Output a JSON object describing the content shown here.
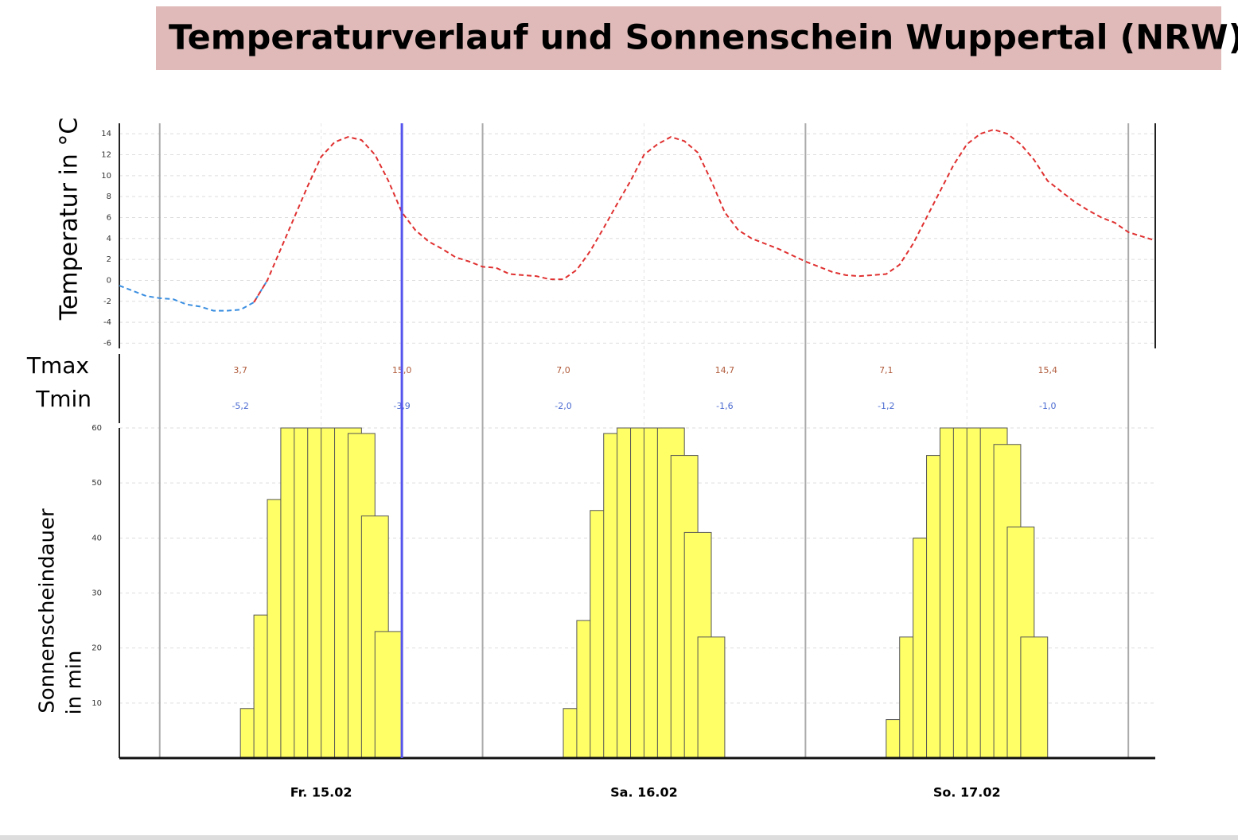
{
  "chart_data": {
    "type": "weather",
    "title": "Temperaturverlauf und Sonnenschein Wuppertal (NRW)",
    "xlim": [
      -3,
      74
    ],
    "xticks": [
      0,
      24,
      48,
      72
    ],
    "day_labels": {
      "x": [
        12,
        36,
        60
      ],
      "labels": [
        "Fr. 15.02",
        "Sa. 16.02",
        "So. 17.02"
      ]
    },
    "now_marker": 18,
    "temperature": {
      "ylabel": "Temperatur in °C",
      "ylim": [
        -6.5,
        15
      ],
      "yticks": [
        -6,
        -4,
        -2,
        0,
        2,
        4,
        6,
        8,
        10,
        12,
        14
      ],
      "color": "#e03030",
      "negative_color": "#3a8ee0",
      "x": [
        -3,
        -2,
        -1,
        0,
        1,
        2,
        3,
        4,
        5,
        6,
        7,
        8,
        9,
        10,
        11,
        12,
        13,
        14,
        15,
        16,
        17,
        18,
        19,
        20,
        21,
        22,
        23,
        24,
        25,
        26,
        27,
        28,
        29,
        30,
        31,
        32,
        33,
        34,
        35,
        36,
        37,
        38,
        39,
        40,
        41,
        42,
        43,
        44,
        45,
        46,
        47,
        48,
        49,
        50,
        51,
        52,
        53,
        54,
        55,
        56,
        57,
        58,
        59,
        60,
        61,
        62,
        63,
        64,
        65,
        66,
        67,
        68,
        69,
        70,
        71,
        72,
        73,
        74
      ],
      "values": [
        -0.5,
        -1.0,
        -1.5,
        -1.7,
        -1.8,
        -2.3,
        -2.5,
        -2.9,
        -2.9,
        -2.8,
        -2.1,
        0.0,
        3.0,
        6.0,
        9.0,
        11.8,
        13.2,
        13.7,
        13.4,
        12.0,
        9.5,
        6.5,
        4.8,
        3.7,
        3.0,
        2.2,
        1.8,
        1.3,
        1.2,
        0.6,
        0.5,
        0.4,
        0.1,
        0.1,
        1.0,
        2.8,
        5.0,
        7.3,
        9.5,
        12.0,
        13.0,
        13.7,
        13.3,
        12.2,
        9.5,
        6.5,
        4.8,
        4.0,
        3.5,
        3.0,
        2.4,
        1.8,
        1.3,
        0.8,
        0.5,
        0.4,
        0.5,
        0.6,
        1.5,
        3.5,
        6.0,
        8.5,
        11.0,
        13.0,
        14.0,
        14.4,
        14.0,
        13.0,
        11.5,
        9.5,
        8.5,
        7.5,
        6.7,
        6.0,
        5.5,
        4.6,
        4.2,
        3.8
      ]
    },
    "tmax": {
      "label": "Tmax",
      "color": "#b05a3a",
      "x": [
        6,
        18,
        30,
        42,
        54,
        66
      ],
      "values": [
        3.7,
        15.0,
        7.0,
        14.7,
        7.1,
        15.4
      ],
      "value_labels": [
        "3,7",
        "15,0",
        "7,0",
        "14,7",
        "7,1",
        "15,4"
      ]
    },
    "tmin": {
      "label": "Tmin",
      "color": "#4a6ad0",
      "x": [
        6,
        18,
        30,
        42,
        54,
        66
      ],
      "values": [
        -5.2,
        -3.9,
        -2.0,
        -1.6,
        -1.2,
        -1.0
      ],
      "value_labels": [
        "-5,2",
        "-3,9",
        "-2,0",
        "-1,6",
        "-1,2",
        "-1,0"
      ]
    },
    "sunshine": {
      "ylabel": [
        "Sonnenscheindauer",
        "in min"
      ],
      "ylim": [
        0,
        60
      ],
      "yticks": [
        10,
        20,
        30,
        40,
        50,
        60
      ],
      "color": "#ffff66",
      "x": [
        6,
        7,
        8,
        9,
        10,
        11,
        12,
        13,
        14,
        15,
        16,
        30,
        31,
        32,
        33,
        34,
        35,
        36,
        37,
        38,
        39,
        40,
        54,
        55,
        56,
        57,
        58,
        59,
        60,
        61,
        62,
        63,
        64
      ],
      "values": [
        9,
        26,
        47,
        60,
        60,
        60,
        60,
        60,
        59,
        44,
        23,
        9,
        25,
        45,
        59,
        60,
        60,
        60,
        60,
        55,
        41,
        22,
        7,
        22,
        40,
        55,
        60,
        60,
        60,
        60,
        57,
        42,
        22
      ]
    }
  }
}
